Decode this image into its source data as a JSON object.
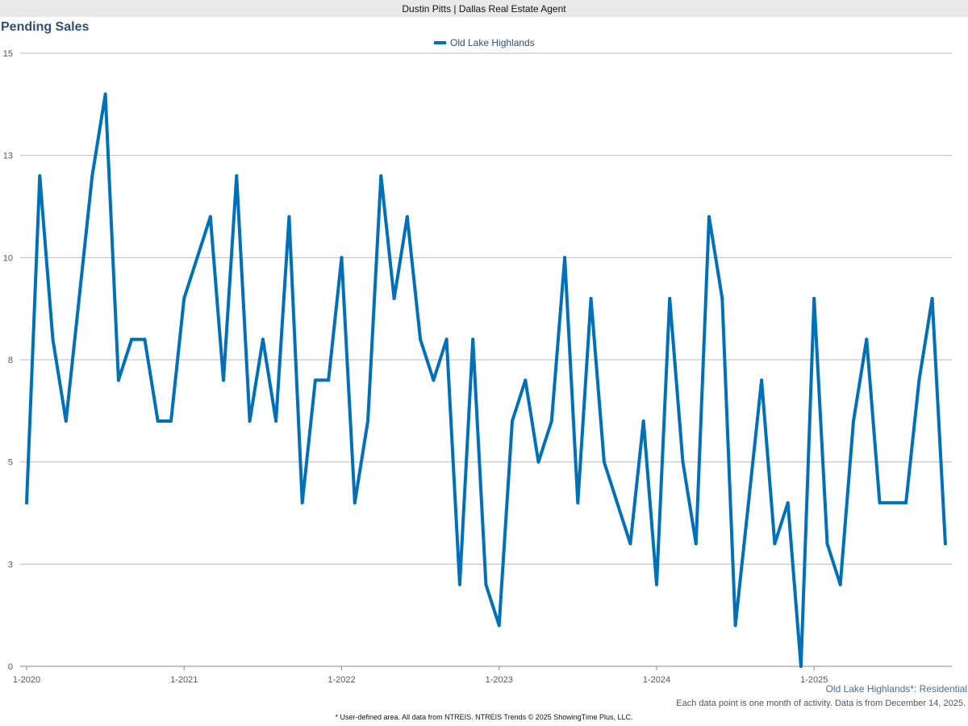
{
  "header": {
    "text": "Dustin Pitts | Dallas Real Estate Agent"
  },
  "footer": {
    "area_label": "Old Lake Highlands*: Residential",
    "note": "Each data point is one month of activity. Data is from December 14, 2025.",
    "disclaimer": "* User-defined area. All data from NTREIS. NTREIS Trends © 2025 ShowingTime Plus, LLC."
  },
  "chart_data": {
    "type": "line",
    "title": "Pending Sales",
    "legend_position": "top-center",
    "grid": true,
    "ylim": [
      0,
      15
    ],
    "y_ticks": [
      {
        "v": 0,
        "label": "0"
      },
      {
        "v": 2.5,
        "label": "3"
      },
      {
        "v": 5,
        "label": "5"
      },
      {
        "v": 7.5,
        "label": "8"
      },
      {
        "v": 10,
        "label": "10"
      },
      {
        "v": 12.5,
        "label": "13"
      },
      {
        "v": 15,
        "label": "15"
      }
    ],
    "x_ticks": [
      "1-2020",
      "1-2021",
      "1-2022",
      "1-2023",
      "1-2024",
      "1-2025"
    ],
    "x_start": "2020-01",
    "x_end": "2025-11",
    "series": [
      {
        "name": "Old Lake Highlands",
        "color": "#0070b8",
        "values": [
          4,
          12,
          8,
          6,
          9,
          12,
          14,
          7,
          8,
          8,
          6,
          6,
          9,
          10,
          11,
          7,
          12,
          6,
          8,
          6,
          11,
          4,
          7,
          7,
          10,
          4,
          6,
          12,
          9,
          11,
          8,
          7,
          8,
          2,
          8,
          2,
          1,
          6,
          7,
          5,
          6,
          10,
          4,
          9,
          5,
          4,
          3,
          6,
          2,
          9,
          5,
          3,
          11,
          9,
          1,
          4,
          7,
          3,
          4,
          0,
          9,
          3,
          2,
          6,
          8,
          4,
          4,
          4,
          7,
          9,
          3
        ]
      }
    ]
  }
}
